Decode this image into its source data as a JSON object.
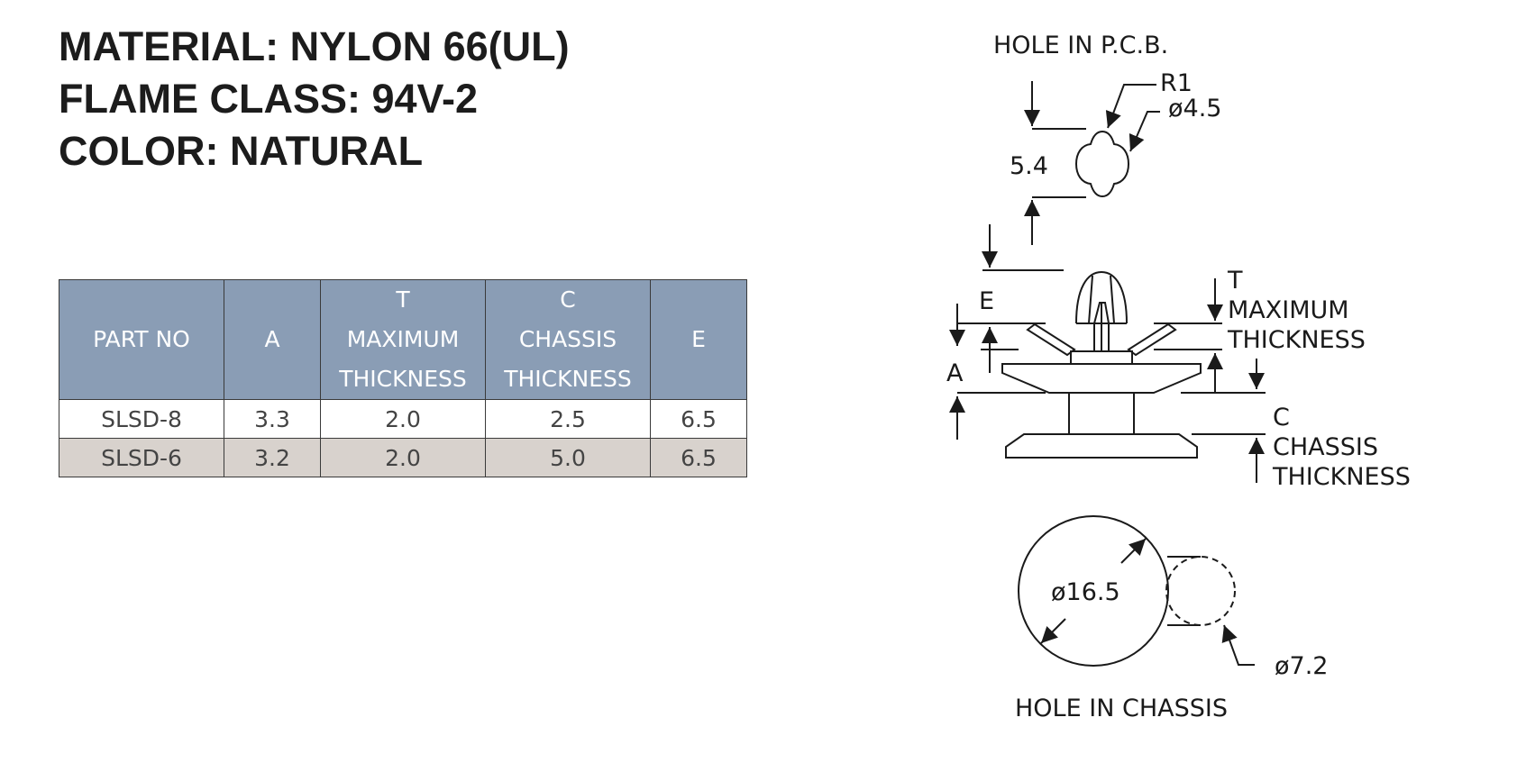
{
  "specs": {
    "material": "MATERIAL: NYLON 66(UL)",
    "flame_class": "FLAME CLASS: 94V-2",
    "color": "COLOR: NATURAL"
  },
  "table": {
    "headers": {
      "part_no": "PART NO",
      "a": "A",
      "t_line1": "T",
      "t_line2": "MAXIMUM",
      "t_line3": "THICKNESS",
      "c_line1": "C",
      "c_line2": "CHASSIS",
      "c_line3": "THICKNESS",
      "e": "E"
    },
    "rows": [
      {
        "part_no": "SLSD-8",
        "a": "3.3",
        "t": "2.0",
        "c": "2.5",
        "e": "6.5"
      },
      {
        "part_no": "SLSD-6",
        "a": "3.2",
        "t": "2.0",
        "c": "5.0",
        "e": "6.5"
      }
    ],
    "colors": {
      "header_bg": "#8a9db5",
      "alt_row_bg": "#d8d2cd",
      "border": "#3a3a3a"
    }
  },
  "drawing": {
    "pcb_hole_title": "HOLE IN P.C.B.",
    "r1": "R1",
    "dia_pcb": "ø4.5",
    "dim_5_4": "5.4",
    "label_e": "E",
    "label_a": "A",
    "label_t": "T",
    "t_line2": "MAXIMUM",
    "t_line3": "THICKNESS",
    "label_c": "C",
    "c_line2": "CHASSIS",
    "c_line3": "THICKNESS",
    "dia_chassis": "ø16.5",
    "dia_tab": "ø7.2",
    "chassis_hole_title": "HOLE IN CHASSIS"
  }
}
